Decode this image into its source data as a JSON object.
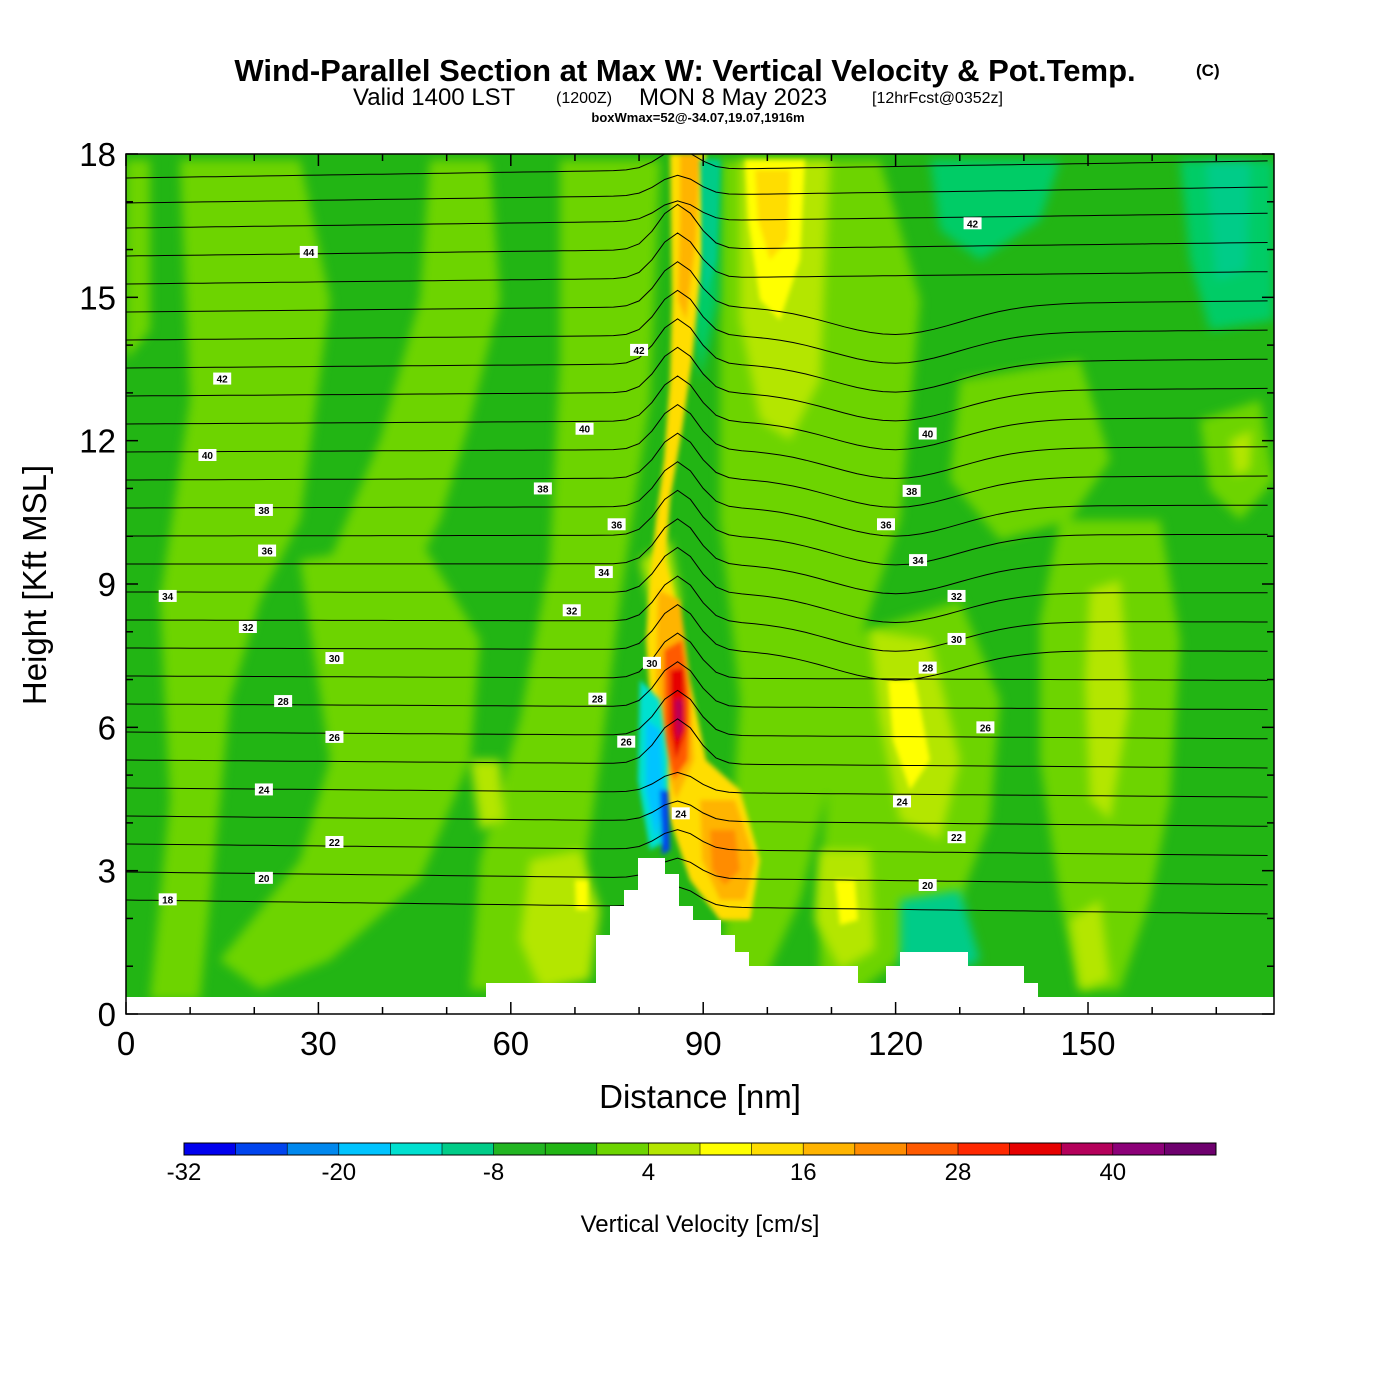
{
  "header": {
    "title": "Wind-Parallel Section at Max W: Vertical Velocity & Pot.Temp.",
    "copyright": "(C)",
    "valid_prefix": "Valid 1400 LST",
    "utc": "(1200Z)",
    "date": "MON 8 May 2023",
    "forecast": "[12hrFcst@0352z]",
    "box_info": "boxWmax=52@-34.07,19.07,1916m"
  },
  "chart_data": {
    "type": "heatmap",
    "xlabel": "Distance [nm]",
    "ylabel": "Height [Kft MSL]",
    "xlim": [
      0,
      179
    ],
    "ylim": [
      0,
      18
    ],
    "xticks": [
      0,
      30,
      60,
      90,
      120,
      150
    ],
    "yticks": [
      0,
      3,
      6,
      9,
      12,
      15,
      18
    ],
    "colorbar": {
      "label": "Vertical Velocity [cm/s]",
      "min": -32,
      "max": 48,
      "step": 4,
      "tick_values": [
        -32,
        -20,
        -8,
        4,
        16,
        28,
        40
      ],
      "colors": [
        "#0000ee",
        "#0044ee",
        "#0088ee",
        "#00c4ff",
        "#00e0d0",
        "#00cc88",
        "#22b522",
        "#22b514",
        "#6dd400",
        "#b4e600",
        "#ffff00",
        "#ffdd00",
        "#ffb400",
        "#ff8c00",
        "#ff5a00",
        "#ff2800",
        "#e60000",
        "#b4005a",
        "#8c0078",
        "#6e006e"
      ]
    },
    "contour_labels": [
      {
        "x": 28.5,
        "y": 15.95,
        "text": "44"
      },
      {
        "x": 15.0,
        "y": 13.3,
        "text": "42"
      },
      {
        "x": 80.0,
        "y": 13.9,
        "text": "42"
      },
      {
        "x": 132.0,
        "y": 16.55,
        "text": "42"
      },
      {
        "x": 12.7,
        "y": 11.7,
        "text": "40"
      },
      {
        "x": 71.5,
        "y": 12.25,
        "text": "40"
      },
      {
        "x": 125.0,
        "y": 12.15,
        "text": "40"
      },
      {
        "x": 65.0,
        "y": 11.0,
        "text": "38"
      },
      {
        "x": 21.5,
        "y": 10.55,
        "text": "38"
      },
      {
        "x": 122.5,
        "y": 10.95,
        "text": "38"
      },
      {
        "x": 22.0,
        "y": 9.7,
        "text": "36"
      },
      {
        "x": 76.5,
        "y": 10.25,
        "text": "36"
      },
      {
        "x": 118.5,
        "y": 10.25,
        "text": "36"
      },
      {
        "x": 6.5,
        "y": 8.75,
        "text": "34"
      },
      {
        "x": 74.5,
        "y": 9.25,
        "text": "34"
      },
      {
        "x": 123.5,
        "y": 9.5,
        "text": "34"
      },
      {
        "x": 19.0,
        "y": 8.1,
        "text": "32"
      },
      {
        "x": 69.5,
        "y": 8.45,
        "text": "32"
      },
      {
        "x": 129.5,
        "y": 8.75,
        "text": "32"
      },
      {
        "x": 32.5,
        "y": 7.45,
        "text": "30"
      },
      {
        "x": 82.0,
        "y": 7.35,
        "text": "30"
      },
      {
        "x": 129.5,
        "y": 7.85,
        "text": "30"
      },
      {
        "x": 24.5,
        "y": 6.55,
        "text": "28"
      },
      {
        "x": 73.5,
        "y": 6.6,
        "text": "28"
      },
      {
        "x": 125.0,
        "y": 7.25,
        "text": "28"
      },
      {
        "x": 32.5,
        "y": 5.8,
        "text": "26"
      },
      {
        "x": 78.0,
        "y": 5.7,
        "text": "26"
      },
      {
        "x": 134.0,
        "y": 6.0,
        "text": "26"
      },
      {
        "x": 21.5,
        "y": 4.7,
        "text": "24"
      },
      {
        "x": 86.5,
        "y": 4.2,
        "text": "24"
      },
      {
        "x": 121.0,
        "y": 4.45,
        "text": "24"
      },
      {
        "x": 32.5,
        "y": 3.6,
        "text": "22"
      },
      {
        "x": 129.5,
        "y": 3.7,
        "text": "22"
      },
      {
        "x": 21.5,
        "y": 2.85,
        "text": "20"
      },
      {
        "x": 125.0,
        "y": 2.7,
        "text": "20"
      },
      {
        "x": 6.5,
        "y": 2.4,
        "text": "18"
      }
    ]
  }
}
